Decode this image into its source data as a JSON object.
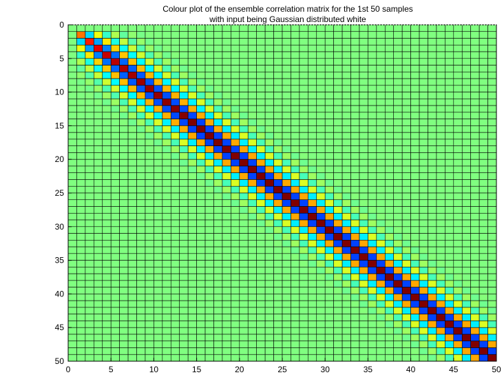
{
  "chart_data": {
    "type": "heatmap",
    "title": "Colour plot of the ensemble correlation matrix for the 1st 50 samples",
    "subtitle": "with input being Gaussian distributed white",
    "xlabel": "",
    "ylabel": "",
    "xlim": [
      0,
      50
    ],
    "ylim": [
      0,
      50
    ],
    "y_reversed": true,
    "grid": false,
    "x_ticks": [
      "0",
      "5",
      "10",
      "15",
      "20",
      "25",
      "30",
      "35",
      "40",
      "45",
      "50"
    ],
    "y_ticks": [
      "0",
      "5",
      "10",
      "15",
      "20",
      "25",
      "30",
      "35",
      "40",
      "45",
      "50"
    ],
    "colormap": "jet",
    "color_scale": {
      "min": -1,
      "max": 1
    },
    "colors": {
      "background_level": "#33ffcc",
      "cell_edge": "#000000",
      "axis": "#000000"
    },
    "cells": {
      "rows": 50,
      "cols": 50,
      "active_start": 2,
      "diagonal_values": [
        0,
        0.52,
        0.7,
        0.8,
        0.86,
        0.89,
        0.91,
        0.93,
        0.94,
        0.95,
        0.96,
        0.97,
        0.98,
        0.99,
        1.0,
        1.0,
        1.0,
        1.0,
        1.0,
        1.0,
        1.0,
        1.0,
        1.0,
        1.0,
        1.0,
        1.0,
        1.0,
        1.0,
        1.0,
        1.0,
        1.0,
        1.0,
        1.0,
        1.0,
        1.0,
        1.0,
        1.0,
        1.0,
        1.0,
        1.0,
        1.0,
        1.0,
        1.0,
        1.0,
        1.0,
        1.0,
        1.0,
        1.0,
        1.0,
        1.0
      ],
      "lag_values": [
        1.0,
        -0.62,
        0.42,
        -0.28,
        0.18,
        -0.11,
        0.06,
        -0.03,
        0.01
      ],
      "background": 0
    }
  }
}
